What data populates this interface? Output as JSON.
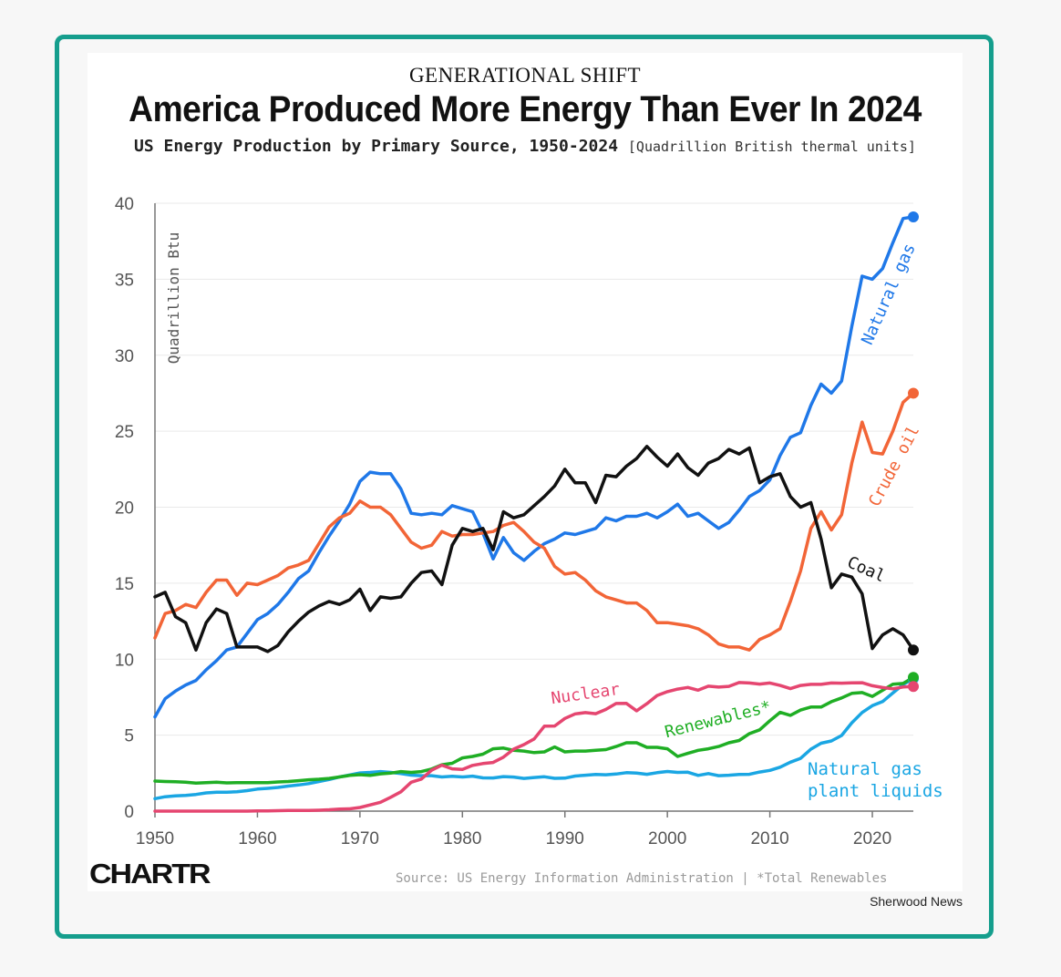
{
  "header": {
    "kicker": "GENERATIONAL SHIFT",
    "title": "America Produced More Energy Than Ever In 2024",
    "subtitle": "US Energy Production by Primary Source, 1950-2024",
    "units": "[Quadrillion British thermal units]"
  },
  "footer": {
    "logo": "CHARTR",
    "source": "Source: US Energy Information Administration | *Total Renewables",
    "credit": "Sherwood News"
  },
  "chart_data": {
    "type": "line",
    "ylabel": "Quadrillion Btu",
    "xlim": [
      1950,
      2024
    ],
    "ylim": [
      0,
      40
    ],
    "x_ticks": [
      1950,
      1960,
      1970,
      1980,
      1990,
      2000,
      2010,
      2020
    ],
    "y_ticks": [
      0,
      5,
      10,
      15,
      20,
      25,
      30,
      35,
      40
    ],
    "x": [
      1950,
      1951,
      1952,
      1953,
      1954,
      1955,
      1956,
      1957,
      1958,
      1959,
      1960,
      1961,
      1962,
      1963,
      1964,
      1965,
      1966,
      1967,
      1968,
      1969,
      1970,
      1971,
      1972,
      1973,
      1974,
      1975,
      1976,
      1977,
      1978,
      1979,
      1980,
      1981,
      1982,
      1983,
      1984,
      1985,
      1986,
      1987,
      1988,
      1989,
      1990,
      1991,
      1992,
      1993,
      1994,
      1995,
      1996,
      1997,
      1998,
      1999,
      2000,
      2001,
      2002,
      2003,
      2004,
      2005,
      2006,
      2007,
      2008,
      2009,
      2010,
      2011,
      2012,
      2013,
      2014,
      2015,
      2016,
      2017,
      2018,
      2019,
      2020,
      2021,
      2022,
      2023,
      2024
    ],
    "series": [
      {
        "name": "Natural gas",
        "label": "Natural gas",
        "color": "#1f78e8",
        "values": [
          6.2,
          7.4,
          7.9,
          8.3,
          8.6,
          9.3,
          9.9,
          10.6,
          10.8,
          11.7,
          12.6,
          13.0,
          13.6,
          14.4,
          15.3,
          15.8,
          17.0,
          18.1,
          19.1,
          20.2,
          21.7,
          22.3,
          22.2,
          22.2,
          21.2,
          19.6,
          19.5,
          19.6,
          19.5,
          20.1,
          19.9,
          19.7,
          18.3,
          16.6,
          18.0,
          17.0,
          16.5,
          17.1,
          17.6,
          17.9,
          18.3,
          18.2,
          18.4,
          18.6,
          19.3,
          19.1,
          19.4,
          19.4,
          19.6,
          19.3,
          19.7,
          20.2,
          19.4,
          19.6,
          19.1,
          18.6,
          19.0,
          19.8,
          20.7,
          21.1,
          21.8,
          23.4,
          24.6,
          24.9,
          26.7,
          28.1,
          27.5,
          28.3,
          31.9,
          35.2,
          35.0,
          35.7,
          37.4,
          39.0,
          39.1
        ]
      },
      {
        "name": "Crude oil",
        "label": "Crude oil",
        "color": "#f26537",
        "values": [
          11.4,
          13.0,
          13.2,
          13.6,
          13.4,
          14.4,
          15.2,
          15.2,
          14.2,
          15.0,
          14.9,
          15.2,
          15.5,
          16.0,
          16.2,
          16.5,
          17.6,
          18.7,
          19.3,
          19.6,
          20.4,
          20.0,
          20.0,
          19.5,
          18.6,
          17.7,
          17.3,
          17.5,
          18.4,
          18.1,
          18.2,
          18.2,
          18.3,
          18.4,
          18.8,
          19.0,
          18.4,
          17.7,
          17.3,
          16.1,
          15.6,
          15.7,
          15.2,
          14.5,
          14.1,
          13.9,
          13.7,
          13.7,
          13.2,
          12.4,
          12.4,
          12.3,
          12.2,
          12.0,
          11.6,
          11.0,
          10.8,
          10.8,
          10.6,
          11.3,
          11.6,
          12.0,
          13.8,
          15.8,
          18.6,
          19.7,
          18.5,
          19.5,
          22.9,
          25.6,
          23.6,
          23.5,
          25.0,
          26.9,
          27.5
        ]
      },
      {
        "name": "Coal",
        "label": "Coal",
        "color": "#111111",
        "values": [
          14.1,
          14.4,
          12.8,
          12.4,
          10.6,
          12.4,
          13.3,
          13.0,
          10.8,
          10.8,
          10.8,
          10.5,
          10.9,
          11.8,
          12.5,
          13.1,
          13.5,
          13.8,
          13.6,
          13.9,
          14.6,
          13.2,
          14.1,
          14.0,
          14.1,
          15.0,
          15.7,
          15.8,
          14.9,
          17.5,
          18.6,
          18.4,
          18.6,
          17.2,
          19.7,
          19.3,
          19.5,
          20.1,
          20.7,
          21.4,
          22.5,
          21.6,
          21.6,
          20.3,
          22.1,
          22.0,
          22.7,
          23.2,
          24.0,
          23.3,
          22.7,
          23.5,
          22.6,
          22.1,
          22.9,
          23.2,
          23.8,
          23.5,
          23.9,
          21.6,
          22.0,
          22.2,
          20.7,
          20.0,
          20.3,
          17.9,
          14.7,
          15.6,
          15.4,
          14.3,
          10.7,
          11.6,
          12.0,
          11.6,
          10.6
        ]
      },
      {
        "name": "Nuclear",
        "label": "Nuclear",
        "color": "#e54670",
        "values": [
          0,
          0,
          0,
          0,
          0,
          0,
          0,
          0,
          0,
          0,
          0.01,
          0.02,
          0.03,
          0.04,
          0.04,
          0.04,
          0.06,
          0.09,
          0.14,
          0.15,
          0.24,
          0.41,
          0.58,
          0.91,
          1.27,
          1.9,
          2.11,
          2.7,
          3.02,
          2.78,
          2.74,
          3.01,
          3.13,
          3.2,
          3.55,
          4.08,
          4.38,
          4.75,
          5.59,
          5.6,
          6.1,
          6.4,
          6.48,
          6.41,
          6.69,
          7.08,
          7.09,
          6.6,
          7.07,
          7.61,
          7.86,
          8.03,
          8.14,
          7.96,
          8.22,
          8.16,
          8.21,
          8.46,
          8.43,
          8.36,
          8.43,
          8.27,
          8.06,
          8.27,
          8.34,
          8.34,
          8.43,
          8.42,
          8.44,
          8.45,
          8.25,
          8.13,
          8.05,
          8.17,
          8.2
        ]
      },
      {
        "name": "Renewables",
        "label": "Renewables*",
        "color": "#1fae24",
        "values": [
          1.98,
          1.95,
          1.93,
          1.9,
          1.84,
          1.88,
          1.9,
          1.86,
          1.88,
          1.87,
          1.87,
          1.88,
          1.92,
          1.95,
          2.0,
          2.06,
          2.1,
          2.15,
          2.25,
          2.35,
          2.4,
          2.35,
          2.45,
          2.5,
          2.6,
          2.55,
          2.6,
          2.77,
          3.05,
          3.15,
          3.5,
          3.6,
          3.75,
          4.1,
          4.15,
          4.0,
          3.95,
          3.85,
          3.9,
          4.22,
          3.9,
          3.95,
          3.95,
          4.0,
          4.05,
          4.25,
          4.5,
          4.5,
          4.2,
          4.2,
          4.1,
          3.6,
          3.8,
          4.0,
          4.1,
          4.25,
          4.5,
          4.65,
          5.1,
          5.35,
          5.95,
          6.5,
          6.3,
          6.65,
          6.85,
          6.85,
          7.2,
          7.45,
          7.75,
          7.8,
          7.55,
          7.95,
          8.35,
          8.4,
          8.8
        ]
      },
      {
        "name": "Natural gas plant liquids",
        "label_lines": [
          "Natural gas",
          "plant liquids"
        ],
        "color": "#1aa6e3",
        "values": [
          0.82,
          0.95,
          1.01,
          1.04,
          1.1,
          1.2,
          1.25,
          1.25,
          1.27,
          1.35,
          1.45,
          1.5,
          1.56,
          1.65,
          1.72,
          1.81,
          1.95,
          2.08,
          2.25,
          2.38,
          2.51,
          2.55,
          2.6,
          2.55,
          2.47,
          2.37,
          2.33,
          2.33,
          2.25,
          2.29,
          2.25,
          2.3,
          2.19,
          2.18,
          2.27,
          2.24,
          2.15,
          2.21,
          2.26,
          2.16,
          2.17,
          2.31,
          2.36,
          2.41,
          2.39,
          2.44,
          2.53,
          2.5,
          2.42,
          2.53,
          2.61,
          2.55,
          2.56,
          2.35,
          2.47,
          2.33,
          2.36,
          2.41,
          2.42,
          2.57,
          2.68,
          2.89,
          3.22,
          3.47,
          4.08,
          4.47,
          4.62,
          4.98,
          5.81,
          6.49,
          6.94,
          7.21,
          7.77,
          8.33,
          8.72
        ]
      }
    ]
  }
}
